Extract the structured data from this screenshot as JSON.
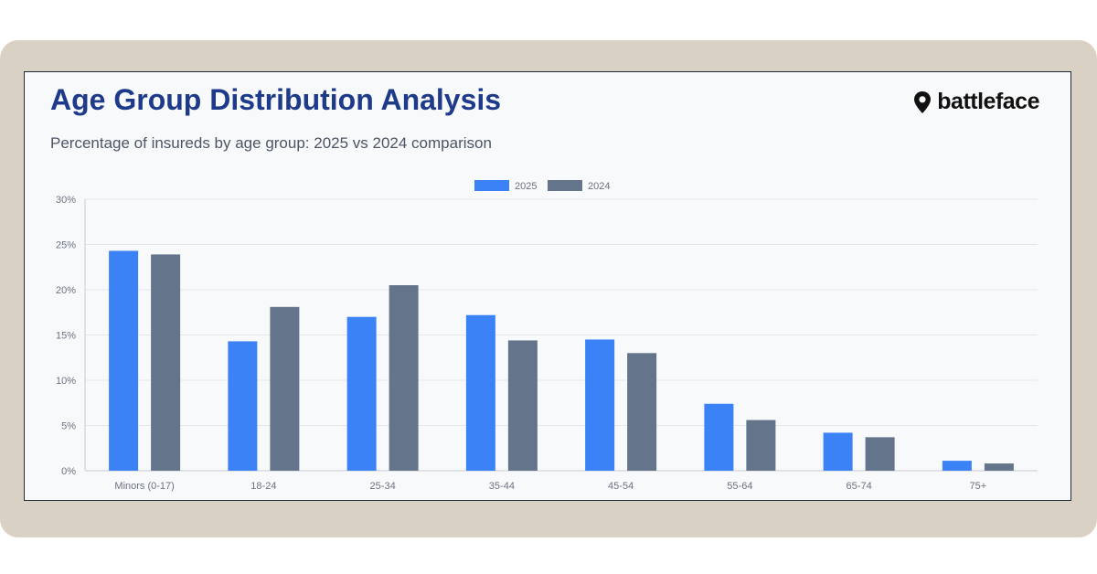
{
  "brand": {
    "name": "battleface",
    "logo_icon": "map-pin-icon"
  },
  "chart_data": {
    "type": "bar",
    "title": "Age Group Distribution Analysis",
    "subtitle": "Percentage of insureds by age group: 2025 vs 2024 comparison",
    "categories": [
      "Minors (0-17)",
      "18-24",
      "25-34",
      "35-44",
      "45-54",
      "55-64",
      "65-74",
      "75+"
    ],
    "series": [
      {
        "name": "2025",
        "color": "#3b82f6",
        "values": [
          24.3,
          14.3,
          17.0,
          17.2,
          14.5,
          7.4,
          4.2,
          1.1
        ]
      },
      {
        "name": "2024",
        "color": "#64748b",
        "values": [
          23.9,
          18.1,
          20.5,
          14.4,
          13.0,
          5.6,
          3.7,
          0.8
        ]
      }
    ],
    "y_ticks": [
      "0%",
      "5%",
      "10%",
      "15%",
      "20%",
      "25%",
      "30%"
    ],
    "ylim": [
      0,
      30
    ],
    "legend": "top-center",
    "grid": true
  }
}
